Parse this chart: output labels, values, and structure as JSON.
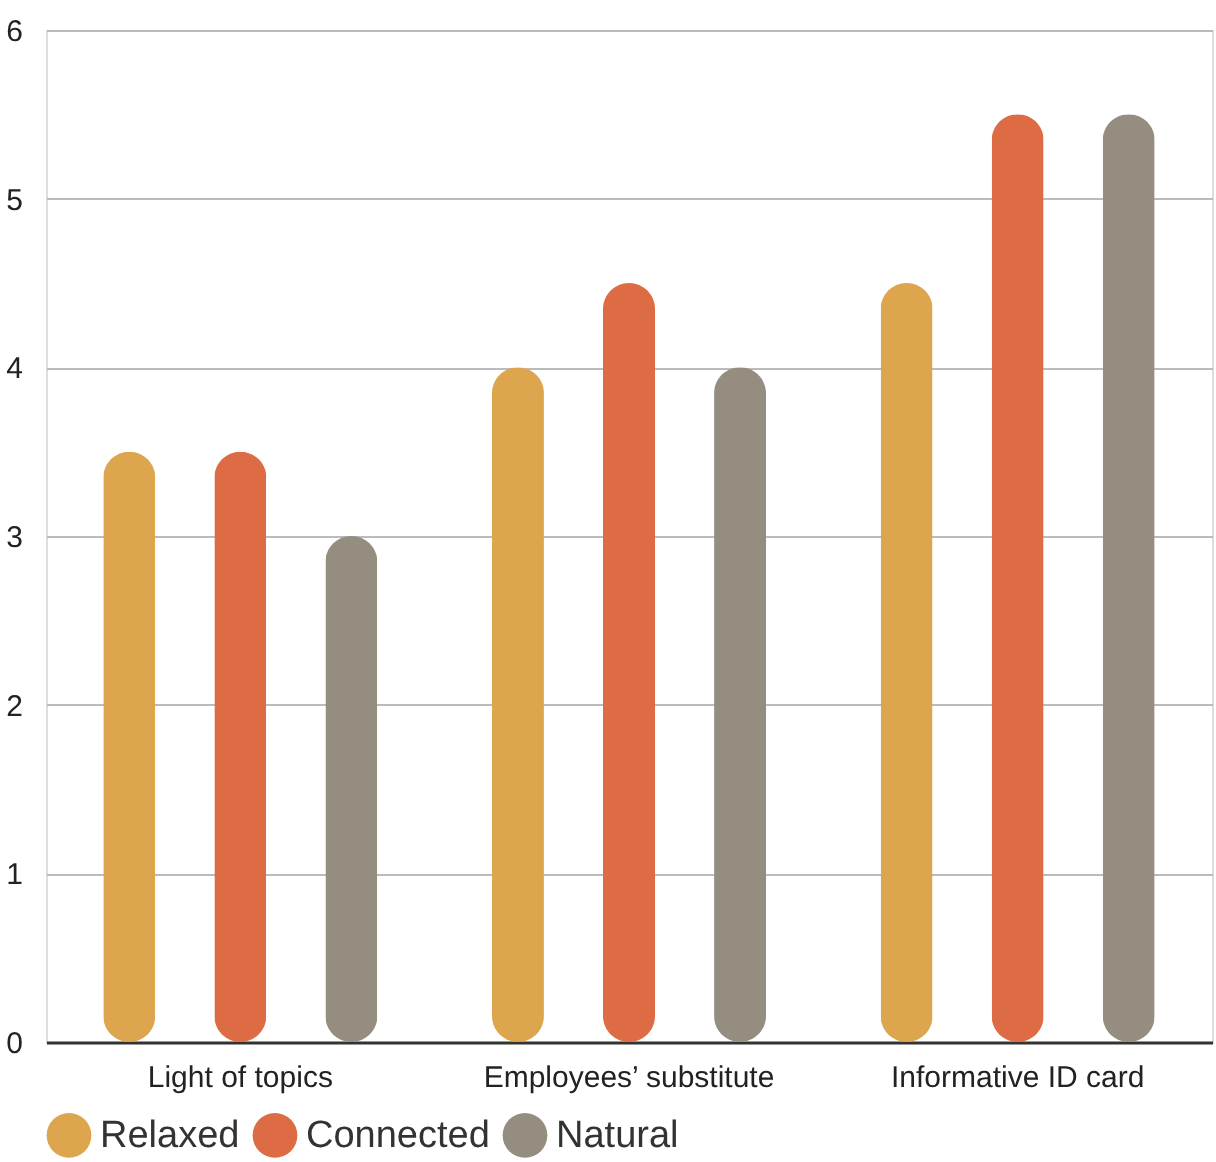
{
  "chart_data": {
    "type": "bar",
    "categories": [
      "Light of topics",
      "Employees’ substitute",
      "Informative ID card"
    ],
    "series": [
      {
        "name": "Relaxed",
        "color": "#dca54e",
        "values": [
          3.5,
          4.0,
          4.5
        ]
      },
      {
        "name": "Connected",
        "color": "#dd6b44",
        "values": [
          3.5,
          4.5,
          5.5
        ]
      },
      {
        "name": "Natural",
        "color": "#958d80",
        "values": [
          3.0,
          4.0,
          5.5
        ]
      }
    ],
    "ylim": [
      0,
      6
    ],
    "yticks": [
      0,
      1,
      2,
      3,
      4,
      5,
      6
    ],
    "grid": "y",
    "legend": "bottom left"
  }
}
